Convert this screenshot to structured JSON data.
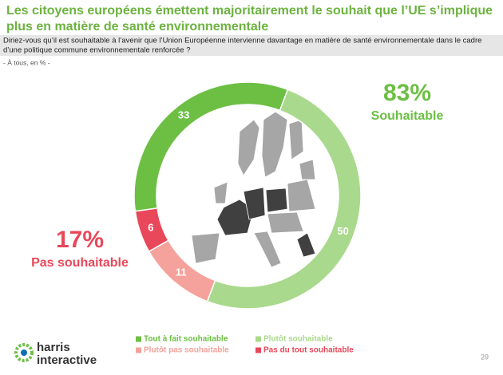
{
  "chart_data": {
    "type": "donut",
    "title": [
      "Les citoyens européens émettent majoritairement le souhait que l’UE s’implique",
      "plus en matière de santé environnementale"
    ],
    "question": [
      "Diriez-vous qu’il est souhaitable à l’avenir que l’Union Européenne intervienne davantage en matière de santé environnementale dans le cadre",
      "d’une politique commune environnementale renforcée ?"
    ],
    "subtitle": "- À tous, en % -",
    "categories": [
      "Tout à fait souhaitable",
      "Plutôt souhaitable",
      "Plutôt pas souhaitable",
      "Pas du tout souhaitable"
    ],
    "values": [
      33,
      50,
      11,
      6
    ],
    "colors": [
      "#6cbf43",
      "#a9d98c",
      "#f4a29b",
      "#e8485a"
    ],
    "annotations": [
      {
        "value": "83%",
        "label": "Souhaitable",
        "color": "#6cbf43"
      },
      {
        "value": "17%",
        "label": "Pas souhaitable",
        "color": "#e8485a"
      }
    ],
    "logo": [
      "harris",
      "interactive"
    ],
    "page_number": "29"
  }
}
